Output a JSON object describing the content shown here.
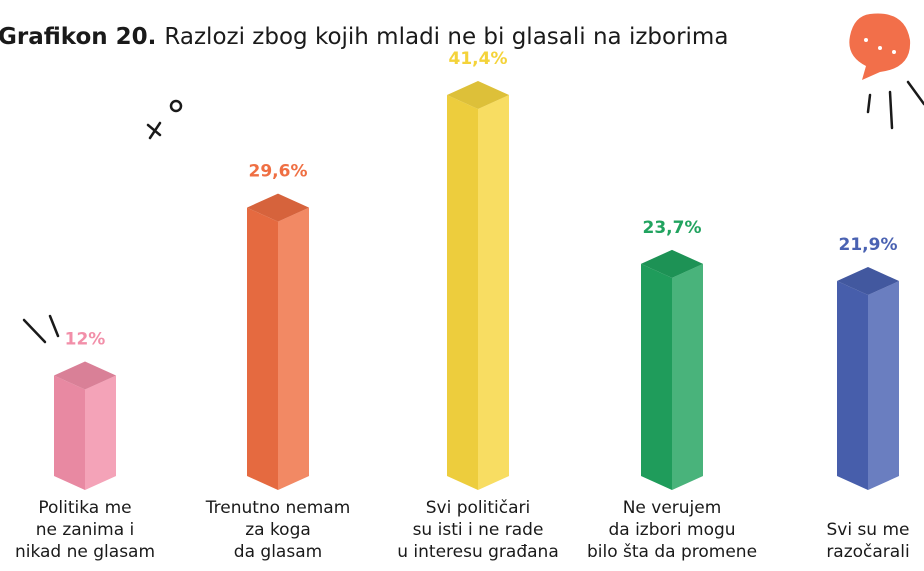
{
  "chart_data": {
    "type": "bar3d",
    "title_label": "Grafikon 20.",
    "title": "Razlozi zbog kojih mladi ne bi glasali na izborima",
    "categories": [
      [
        "Politika me",
        "ne zanima i",
        "nikad ne glasam"
      ],
      [
        "Trenutno nemam",
        "za koga",
        "da glasam"
      ],
      [
        "Svi političari",
        "su isti i ne rade",
        "u interesu građana"
      ],
      [
        "Ne verujem",
        "da izbori mogu",
        "bilo šta da promene"
      ],
      [
        "Svi su me",
        "razočarali"
      ]
    ],
    "values": [
      12,
      29.6,
      41.4,
      23.7,
      21.9
    ],
    "value_labels": [
      "12%",
      "29,6%",
      "41,4%",
      "23,7%",
      "21,9%"
    ],
    "colors": [
      "#f28fa9",
      "#ef6f43",
      "#f7d640",
      "#21a35f",
      "#4a62b2"
    ],
    "label_colors": [
      "#f28fa9",
      "#ef6f43",
      "#f4d33a",
      "#21a35f",
      "#4a62b2"
    ]
  }
}
